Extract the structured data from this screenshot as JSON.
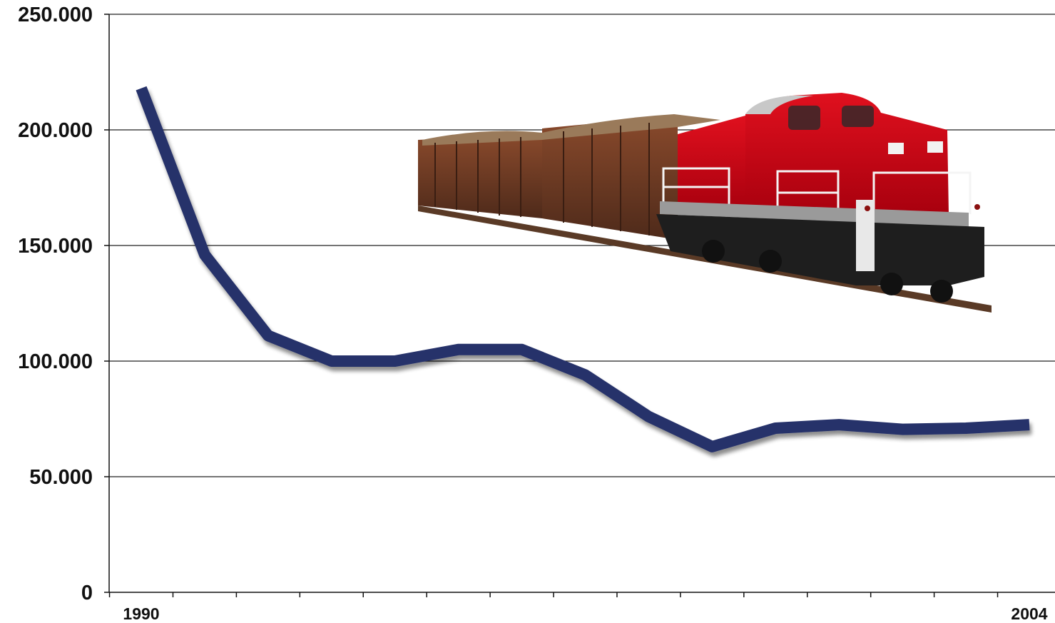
{
  "chart_data": {
    "type": "line",
    "title": "",
    "xlabel": "",
    "ylabel": "",
    "x": [
      1990,
      1991,
      1992,
      1993,
      1994,
      1995,
      1996,
      1997,
      1998,
      1999,
      2000,
      2001,
      2002,
      2003,
      2004
    ],
    "x_tick_labels": [
      "1990",
      "",
      "",
      "",
      "",
      "",
      "",
      "",
      "",
      "",
      "",
      "",
      "",
      "",
      "2004"
    ],
    "y_tick_labels": [
      "0",
      "50.000",
      "100.000",
      "150.000",
      "200.000",
      "250.000"
    ],
    "y_ticks": [
      0,
      50000,
      100000,
      150000,
      200000,
      250000
    ],
    "ylim": [
      0,
      250000
    ],
    "xlim": [
      1989.5,
      2004.5
    ],
    "grid": true,
    "series": [
      {
        "values": [
          218000,
          146000,
          111000,
          100000,
          100000,
          105000,
          105000,
          94000,
          76000,
          63000,
          71000,
          72500,
          70500,
          71000,
          72500
        ],
        "color": "#25306a"
      }
    ],
    "illustration": "freight-train-locomotive"
  }
}
